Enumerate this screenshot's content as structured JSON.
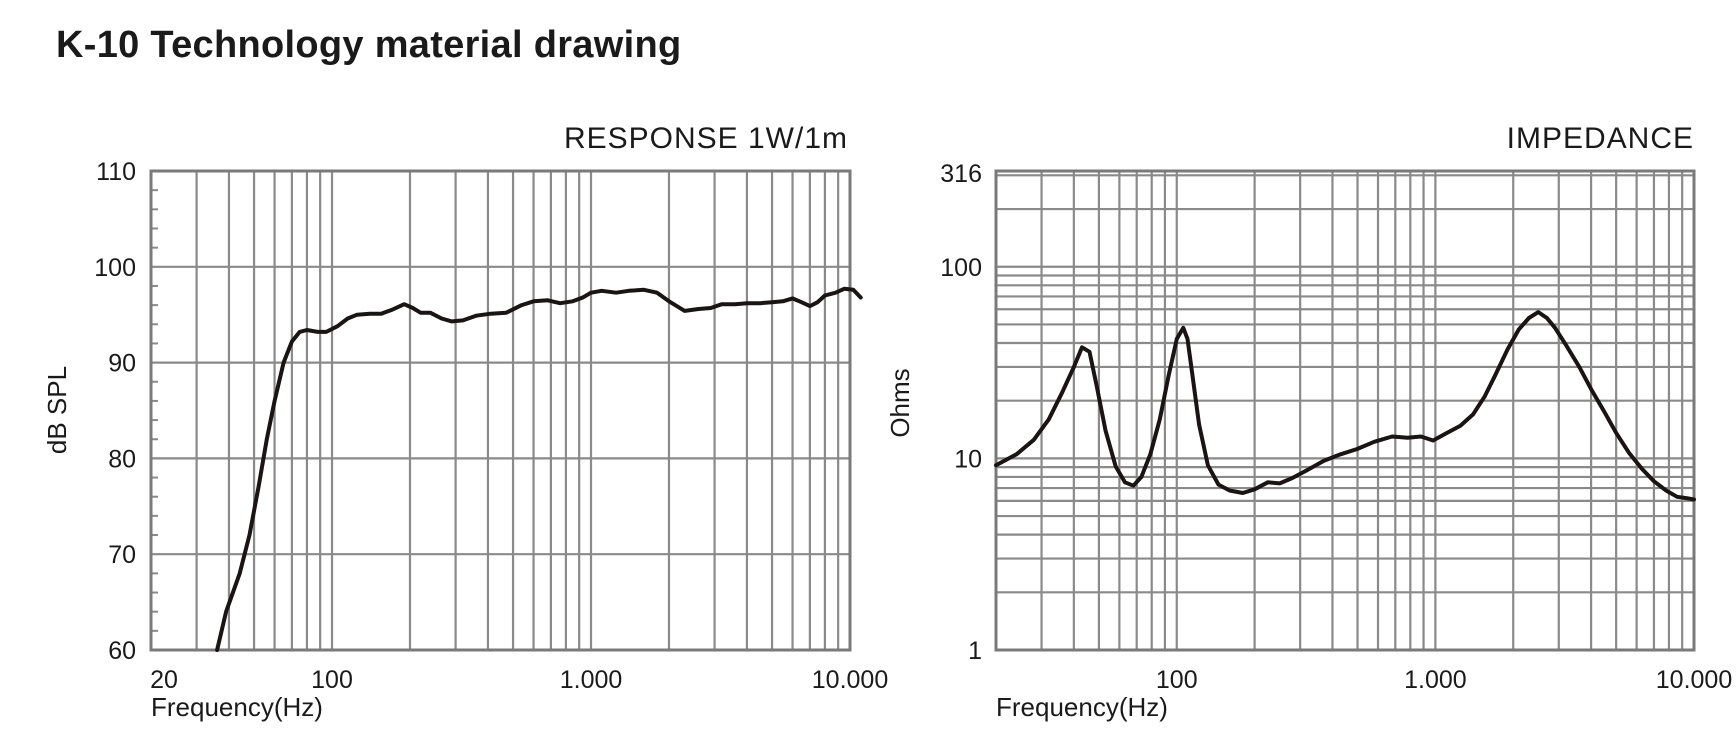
{
  "page": {
    "title": "K-10 Technology material drawing"
  },
  "chart_data": [
    {
      "type": "line",
      "title": "RESPONSE 1W/1m",
      "xlabel": "Frequency(Hz)",
      "ylabel": "dB SPL",
      "xscale": "log",
      "xlim": [
        20,
        10000
      ],
      "ylim": [
        60,
        110
      ],
      "grid": true,
      "x_tick_labels": [
        "20",
        "100",
        "1.000",
        "10.000"
      ],
      "x_tick_values": [
        20,
        100,
        1000,
        10000
      ],
      "y_tick_labels": [
        "110",
        "100",
        "90",
        "80",
        "70",
        "60"
      ],
      "y_tick_values": [
        110,
        100,
        90,
        80,
        70,
        60
      ],
      "series": [
        {
          "x": [
            36,
            39,
            44,
            48,
            52,
            56,
            60,
            65,
            70,
            75,
            80,
            88,
            95,
            105,
            115,
            125,
            140,
            155,
            170,
            190,
            205,
            220,
            240,
            265,
            290,
            320,
            360,
            410,
            470,
            540,
            600,
            680,
            760,
            850,
            930,
            1000,
            1100,
            1250,
            1400,
            1600,
            1800,
            2000,
            2300,
            2600,
            2900,
            3200,
            3600,
            4000,
            4500,
            5000,
            5500,
            6000,
            6500,
            7000,
            7500,
            8000,
            8800,
            9500,
            10300,
            11000
          ],
          "y": [
            60,
            64,
            68,
            72,
            77,
            82,
            86,
            90,
            92.2,
            93.2,
            93.4,
            93.2,
            93.2,
            93.8,
            94.6,
            95,
            95.1,
            95.1,
            95.5,
            96.1,
            95.7,
            95.2,
            95.2,
            94.6,
            94.3,
            94.4,
            94.9,
            95.1,
            95.2,
            96,
            96.4,
            96.5,
            96.2,
            96.4,
            96.8,
            97.3,
            97.5,
            97.3,
            97.5,
            97.6,
            97.3,
            96.4,
            95.4,
            95.6,
            95.7,
            96.1,
            96.1,
            96.2,
            96.2,
            96.3,
            96.4,
            96.7,
            96.3,
            95.9,
            96.3,
            97,
            97.3,
            97.7,
            97.6,
            96.8
          ]
        }
      ]
    },
    {
      "type": "line",
      "title": "IMPEDANCE",
      "xlabel": "Frequency(Hz)",
      "ylabel": "Ohms",
      "xscale": "log",
      "yscale": "log",
      "xlim": [
        20,
        10000
      ],
      "ylim": [
        1,
        316
      ],
      "grid": true,
      "x_tick_labels": [
        "100",
        "1.000",
        "10.000"
      ],
      "x_tick_values": [
        100,
        1000,
        10000
      ],
      "y_tick_labels": [
        "316",
        "100",
        "10",
        "1"
      ],
      "y_tick_values": [
        316,
        100,
        10,
        1
      ],
      "series": [
        {
          "x": [
            20,
            24,
            28,
            32,
            36,
            40,
            43,
            46,
            49,
            53,
            58,
            63,
            68,
            73,
            79,
            86,
            93,
            100,
            106,
            110,
            115,
            122,
            132,
            145,
            160,
            180,
            200,
            225,
            250,
            280,
            320,
            370,
            430,
            500,
            580,
            680,
            780,
            880,
            980,
            1100,
            1250,
            1400,
            1550,
            1700,
            1900,
            2100,
            2300,
            2500,
            2700,
            2900,
            3200,
            3600,
            4000,
            4500,
            5000,
            5600,
            6300,
            7000,
            7800,
            8600,
            9400,
            10000
          ],
          "y": [
            9.2,
            10.5,
            12.5,
            16,
            22,
            30,
            38,
            36,
            24,
            14,
            9.1,
            7.5,
            7.2,
            8,
            10.5,
            16,
            27,
            42,
            48,
            42,
            27,
            15,
            9.2,
            7.3,
            6.8,
            6.6,
            6.9,
            7.5,
            7.4,
            7.9,
            8.7,
            9.7,
            10.5,
            11.2,
            12.2,
            13,
            12.8,
            13,
            12.4,
            13.5,
            14.8,
            17,
            21,
            27,
            37,
            47,
            54,
            58,
            54,
            48,
            39,
            30,
            23,
            17.5,
            13.6,
            10.7,
            8.8,
            7.6,
            6.8,
            6.3,
            6.2,
            6.1
          ]
        }
      ]
    }
  ]
}
